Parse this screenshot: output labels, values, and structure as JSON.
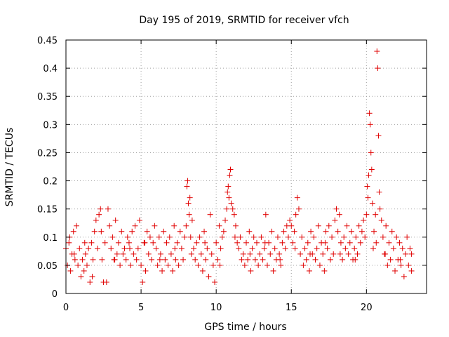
{
  "chart_data": {
    "type": "scatter",
    "title": "Day 195 of 2019, SRMTID for receiver vfch",
    "xlabel": "GPS time / hours",
    "ylabel": "SRMTID / TECUs",
    "xlim": [
      0,
      24
    ],
    "ylim": [
      0,
      0.45
    ],
    "xticks": [
      0,
      5,
      10,
      15,
      20
    ],
    "yticks": [
      0,
      0.05,
      0.1,
      0.15,
      0.2,
      0.25,
      0.3,
      0.35,
      0.4,
      0.45
    ],
    "xtick_labels": [
      "0",
      "5",
      "10",
      "15",
      "20"
    ],
    "ytick_labels": [
      "0",
      "0.05",
      "0.1",
      "0.15",
      "0.2",
      "0.25",
      "0.3",
      "0.35",
      "0.4",
      "0.45"
    ],
    "grid": true,
    "marker": "+",
    "color": "#e00000",
    "series": [
      {
        "name": "SRMTID",
        "points": [
          [
            0.0,
            0.08
          ],
          [
            0.1,
            0.05
          ],
          [
            0.2,
            0.09
          ],
          [
            0.3,
            0.04
          ],
          [
            0.4,
            0.07
          ],
          [
            0.5,
            0.11
          ],
          [
            0.6,
            0.06
          ],
          [
            0.7,
            0.12
          ],
          [
            0.8,
            0.05
          ],
          [
            0.9,
            0.08
          ],
          [
            1.0,
            0.03
          ],
          [
            1.1,
            0.06
          ],
          [
            1.2,
            0.04
          ],
          [
            1.3,
            0.07
          ],
          [
            1.4,
            0.05
          ],
          [
            1.5,
            0.08
          ],
          [
            1.6,
            0.02
          ],
          [
            1.7,
            0.09
          ],
          [
            1.8,
            0.06
          ],
          [
            1.9,
            0.11
          ],
          [
            2.0,
            0.13
          ],
          [
            2.1,
            0.08
          ],
          [
            2.2,
            0.14
          ],
          [
            2.3,
            0.15
          ],
          [
            2.4,
            0.06
          ],
          [
            2.5,
            0.02
          ],
          [
            2.6,
            0.09
          ],
          [
            2.7,
            0.02
          ],
          [
            2.8,
            0.15
          ],
          [
            2.9,
            0.12
          ],
          [
            3.0,
            0.08
          ],
          [
            3.1,
            0.1
          ],
          [
            3.2,
            0.06
          ],
          [
            3.3,
            0.13
          ],
          [
            3.4,
            0.07
          ],
          [
            3.5,
            0.09
          ],
          [
            3.6,
            0.05
          ],
          [
            3.7,
            0.11
          ],
          [
            3.8,
            0.07
          ],
          [
            3.9,
            0.08
          ],
          [
            4.0,
            0.06
          ],
          [
            4.1,
            0.1
          ],
          [
            4.2,
            0.09
          ],
          [
            4.3,
            0.05
          ],
          [
            4.4,
            0.11
          ],
          [
            4.5,
            0.07
          ],
          [
            4.6,
            0.12
          ],
          [
            4.7,
            0.06
          ],
          [
            4.8,
            0.08
          ],
          [
            4.9,
            0.13
          ],
          [
            5.0,
            0.05
          ],
          [
            5.1,
            0.02
          ],
          [
            5.2,
            0.09
          ],
          [
            5.3,
            0.04
          ],
          [
            5.4,
            0.11
          ],
          [
            5.5,
            0.07
          ],
          [
            5.6,
            0.1
          ],
          [
            5.7,
            0.06
          ],
          [
            5.8,
            0.09
          ],
          [
            5.9,
            0.12
          ],
          [
            6.0,
            0.08
          ],
          [
            6.1,
            0.05
          ],
          [
            6.2,
            0.1
          ],
          [
            6.3,
            0.07
          ],
          [
            6.4,
            0.04
          ],
          [
            6.5,
            0.11
          ],
          [
            6.6,
            0.06
          ],
          [
            6.7,
            0.09
          ],
          [
            6.8,
            0.05
          ],
          [
            6.9,
            0.1
          ],
          [
            7.0,
            0.07
          ],
          [
            7.1,
            0.04
          ],
          [
            7.2,
            0.12
          ],
          [
            7.3,
            0.06
          ],
          [
            7.4,
            0.09
          ],
          [
            7.5,
            0.05
          ],
          [
            7.6,
            0.11
          ],
          [
            7.7,
            0.08
          ],
          [
            7.8,
            0.06
          ],
          [
            7.9,
            0.1
          ],
          [
            8.0,
            0.12
          ],
          [
            8.05,
            0.19
          ],
          [
            8.1,
            0.2
          ],
          [
            8.15,
            0.16
          ],
          [
            8.2,
            0.14
          ],
          [
            8.25,
            0.17
          ],
          [
            8.3,
            0.1
          ],
          [
            8.4,
            0.13
          ],
          [
            8.5,
            0.08
          ],
          [
            8.6,
            0.06
          ],
          [
            8.7,
            0.09
          ],
          [
            8.8,
            0.05
          ],
          [
            8.9,
            0.1
          ],
          [
            9.0,
            0.07
          ],
          [
            9.1,
            0.04
          ],
          [
            9.2,
            0.11
          ],
          [
            9.3,
            0.06
          ],
          [
            9.4,
            0.08
          ],
          [
            9.5,
            0.03
          ],
          [
            9.6,
            0.14
          ],
          [
            9.7,
            0.07
          ],
          [
            9.8,
            0.05
          ],
          [
            9.9,
            0.02
          ],
          [
            10.0,
            0.09
          ],
          [
            10.1,
            0.06
          ],
          [
            10.2,
            0.12
          ],
          [
            10.3,
            0.08
          ],
          [
            10.4,
            0.1
          ],
          [
            10.5,
            0.11
          ],
          [
            10.6,
            0.13
          ],
          [
            10.7,
            0.15
          ],
          [
            10.75,
            0.18
          ],
          [
            10.8,
            0.19
          ],
          [
            10.85,
            0.17
          ],
          [
            10.9,
            0.21
          ],
          [
            10.95,
            0.22
          ],
          [
            11.0,
            0.16
          ],
          [
            11.1,
            0.15
          ],
          [
            11.2,
            0.14
          ],
          [
            11.3,
            0.12
          ],
          [
            11.4,
            0.09
          ],
          [
            11.5,
            0.08
          ],
          [
            11.6,
            0.1
          ],
          [
            11.7,
            0.06
          ],
          [
            11.8,
            0.07
          ],
          [
            11.9,
            0.05
          ],
          [
            12.0,
            0.09
          ],
          [
            12.1,
            0.06
          ],
          [
            12.2,
            0.11
          ],
          [
            12.3,
            0.04
          ],
          [
            12.4,
            0.08
          ],
          [
            12.5,
            0.1
          ],
          [
            12.6,
            0.06
          ],
          [
            12.7,
            0.09
          ],
          [
            12.8,
            0.05
          ],
          [
            12.9,
            0.07
          ],
          [
            13.0,
            0.1
          ],
          [
            13.1,
            0.06
          ],
          [
            13.2,
            0.08
          ],
          [
            13.3,
            0.14
          ],
          [
            13.4,
            0.05
          ],
          [
            13.5,
            0.09
          ],
          [
            13.6,
            0.07
          ],
          [
            13.7,
            0.11
          ],
          [
            13.8,
            0.04
          ],
          [
            13.9,
            0.08
          ],
          [
            14.0,
            0.06
          ],
          [
            14.1,
            0.1
          ],
          [
            14.2,
            0.07
          ],
          [
            14.3,
            0.05
          ],
          [
            14.4,
            0.09
          ],
          [
            14.5,
            0.11
          ],
          [
            14.6,
            0.08
          ],
          [
            14.7,
            0.12
          ],
          [
            14.8,
            0.1
          ],
          [
            14.9,
            0.13
          ],
          [
            15.0,
            0.12
          ],
          [
            15.1,
            0.09
          ],
          [
            15.2,
            0.11
          ],
          [
            15.3,
            0.14
          ],
          [
            15.4,
            0.17
          ],
          [
            15.5,
            0.15
          ],
          [
            15.6,
            0.07
          ],
          [
            15.7,
            0.1
          ],
          [
            15.8,
            0.05
          ],
          [
            15.9,
            0.08
          ],
          [
            16.0,
            0.06
          ],
          [
            16.1,
            0.09
          ],
          [
            16.2,
            0.04
          ],
          [
            16.3,
            0.11
          ],
          [
            16.4,
            0.07
          ],
          [
            16.5,
            0.1
          ],
          [
            16.6,
            0.06
          ],
          [
            16.7,
            0.08
          ],
          [
            16.8,
            0.12
          ],
          [
            16.9,
            0.05
          ],
          [
            17.0,
            0.09
          ],
          [
            17.1,
            0.07
          ],
          [
            17.2,
            0.04
          ],
          [
            17.3,
            0.11
          ],
          [
            17.4,
            0.08
          ],
          [
            17.5,
            0.12
          ],
          [
            17.6,
            0.06
          ],
          [
            17.7,
            0.1
          ],
          [
            17.8,
            0.07
          ],
          [
            17.9,
            0.13
          ],
          [
            18.0,
            0.15
          ],
          [
            18.1,
            0.11
          ],
          [
            18.2,
            0.14
          ],
          [
            18.3,
            0.09
          ],
          [
            18.4,
            0.06
          ],
          [
            18.5,
            0.1
          ],
          [
            18.6,
            0.08
          ],
          [
            18.7,
            0.12
          ],
          [
            18.8,
            0.07
          ],
          [
            18.9,
            0.09
          ],
          [
            19.0,
            0.11
          ],
          [
            19.1,
            0.06
          ],
          [
            19.2,
            0.08
          ],
          [
            19.3,
            0.1
          ],
          [
            19.4,
            0.07
          ],
          [
            19.5,
            0.12
          ],
          [
            19.6,
            0.09
          ],
          [
            19.7,
            0.11
          ],
          [
            19.8,
            0.13
          ],
          [
            19.9,
            0.1
          ],
          [
            20.0,
            0.14
          ],
          [
            20.05,
            0.19
          ],
          [
            20.1,
            0.17
          ],
          [
            20.15,
            0.21
          ],
          [
            20.2,
            0.32
          ],
          [
            20.25,
            0.3
          ],
          [
            20.3,
            0.25
          ],
          [
            20.35,
            0.22
          ],
          [
            20.4,
            0.16
          ],
          [
            20.5,
            0.11
          ],
          [
            20.6,
            0.14
          ],
          [
            20.65,
            0.09
          ],
          [
            20.7,
            0.43
          ],
          [
            20.75,
            0.4
          ],
          [
            20.8,
            0.28
          ],
          [
            20.85,
            0.18
          ],
          [
            20.9,
            0.15
          ],
          [
            21.0,
            0.13
          ],
          [
            21.1,
            0.1
          ],
          [
            21.2,
            0.07
          ],
          [
            21.3,
            0.12
          ],
          [
            21.4,
            0.05
          ],
          [
            21.5,
            0.09
          ],
          [
            21.6,
            0.06
          ],
          [
            21.7,
            0.11
          ],
          [
            21.8,
            0.08
          ],
          [
            21.9,
            0.04
          ],
          [
            22.0,
            0.1
          ],
          [
            22.1,
            0.06
          ],
          [
            22.2,
            0.09
          ],
          [
            22.3,
            0.05
          ],
          [
            22.4,
            0.08
          ],
          [
            22.5,
            0.03
          ],
          [
            22.6,
            0.07
          ],
          [
            22.7,
            0.1
          ],
          [
            22.8,
            0.05
          ],
          [
            22.9,
            0.08
          ],
          [
            23.0,
            0.04
          ],
          [
            0.25,
            0.1
          ],
          [
            0.55,
            0.07
          ],
          [
            1.25,
            0.09
          ],
          [
            1.75,
            0.03
          ],
          [
            2.35,
            0.11
          ],
          [
            3.25,
            0.06
          ],
          [
            4.25,
            0.08
          ],
          [
            5.25,
            0.09
          ],
          [
            6.25,
            0.06
          ],
          [
            7.25,
            0.08
          ],
          [
            8.35,
            0.07
          ],
          [
            9.25,
            0.09
          ],
          [
            10.25,
            0.05
          ],
          [
            11.25,
            0.1
          ],
          [
            12.25,
            0.07
          ],
          [
            13.25,
            0.09
          ],
          [
            14.25,
            0.06
          ],
          [
            15.25,
            0.08
          ],
          [
            16.25,
            0.07
          ],
          [
            17.25,
            0.09
          ],
          [
            18.25,
            0.07
          ],
          [
            19.25,
            0.06
          ],
          [
            20.45,
            0.08
          ],
          [
            21.25,
            0.07
          ],
          [
            22.25,
            0.06
          ],
          [
            23.0,
            0.07
          ]
        ]
      }
    ]
  }
}
